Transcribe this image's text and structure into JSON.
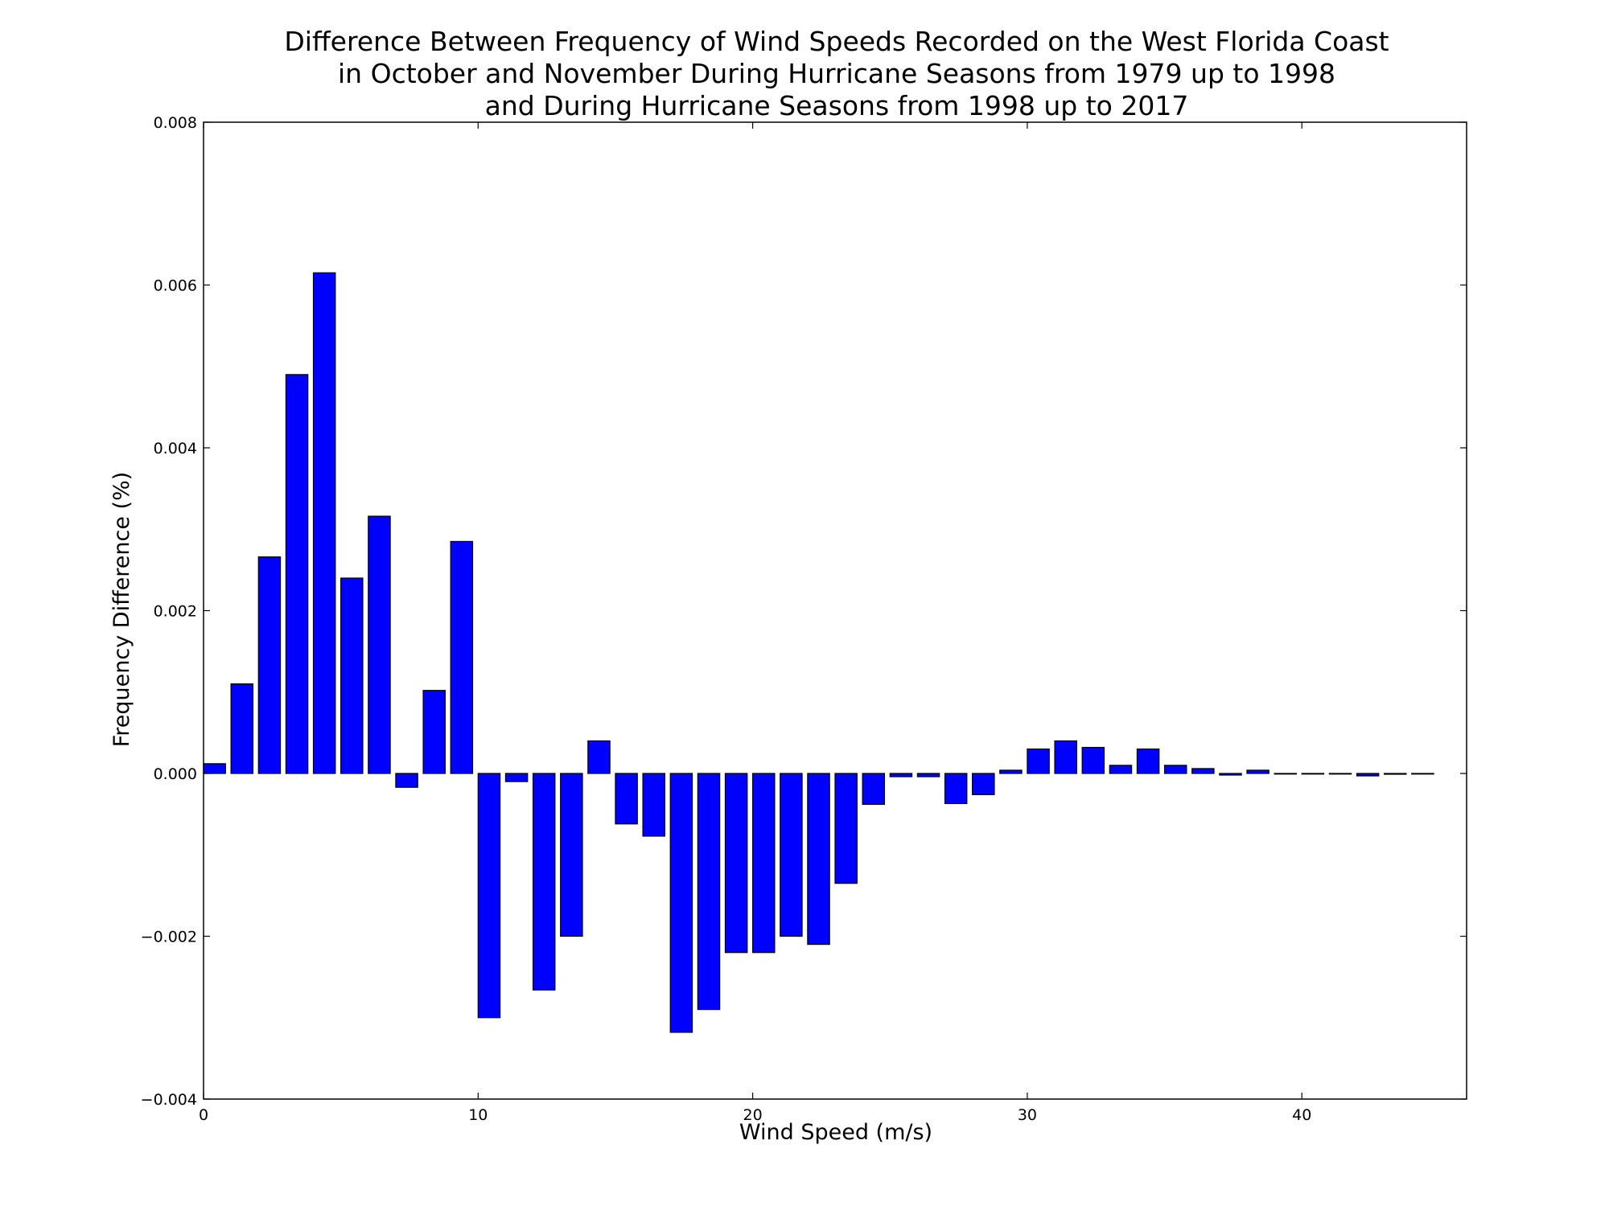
{
  "chart_data": {
    "type": "bar",
    "title_lines": [
      "Difference Between Frequency of Wind Speeds Recorded on the West Florida Coast",
      "in October and November During Hurricane Seasons from 1979 up to 1998",
      "and During Hurricane Seasons from 1998 up to 2017"
    ],
    "xlabel": "Wind Speed (m/s)",
    "ylabel": "Frequency Difference (%)",
    "xlim": [
      0,
      46
    ],
    "ylim": [
      -0.004,
      0.008
    ],
    "xticks": [
      0,
      10,
      20,
      30,
      40
    ],
    "xtick_labels": [
      "0",
      "10",
      "20",
      "30",
      "40"
    ],
    "yticks": [
      -0.004,
      -0.002,
      0.0,
      0.002,
      0.004,
      0.006,
      0.008
    ],
    "ytick_labels": [
      "−0.004",
      "−0.002",
      "0.000",
      "0.002",
      "0.004",
      "0.006",
      "0.008"
    ],
    "bar_width": 0.8,
    "bar_color": "#0000ff",
    "edge_color": "#000000",
    "grid": false,
    "x": [
      0,
      1,
      2,
      3,
      4,
      5,
      6,
      7,
      8,
      9,
      10,
      11,
      12,
      13,
      14,
      15,
      16,
      17,
      18,
      19,
      20,
      21,
      22,
      23,
      24,
      25,
      26,
      27,
      28,
      29,
      30,
      31,
      32,
      33,
      34,
      35,
      36,
      37,
      38,
      39,
      40,
      41,
      42,
      43,
      44
    ],
    "values": [
      0.00012,
      0.0011,
      0.00266,
      0.0049,
      0.00615,
      0.0024,
      0.00316,
      -0.00017,
      0.00102,
      0.00285,
      -0.003,
      -0.0001,
      -0.00266,
      -0.002,
      0.0004,
      -0.00062,
      -0.00077,
      -0.00318,
      -0.0029,
      -0.0022,
      -0.0022,
      -0.002,
      -0.0021,
      -0.00135,
      -0.00038,
      -4e-05,
      -4e-05,
      -0.00037,
      -0.00026,
      4e-05,
      0.0003,
      0.0004,
      0.00032,
      0.0001,
      0.0003,
      0.0001,
      6e-05,
      -2e-05,
      4e-05,
      0.0,
      0.0,
      0.0,
      -3e-05,
      -1e-05,
      0.0
    ]
  }
}
